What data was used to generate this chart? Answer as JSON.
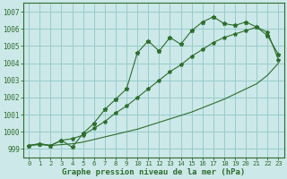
{
  "xlabel": "Graphe pression niveau de la mer (hPa)",
  "bg_color": "#cce8e8",
  "grid_color": "#99cccc",
  "line_color": "#2d6e2d",
  "x_ticks": [
    0,
    1,
    2,
    3,
    4,
    5,
    6,
    7,
    8,
    9,
    10,
    11,
    12,
    13,
    14,
    15,
    16,
    17,
    18,
    19,
    20,
    21,
    22,
    23
  ],
  "ylim": [
    998.5,
    1007.5
  ],
  "xlim": [
    -0.5,
    23.5
  ],
  "yticks": [
    999,
    1000,
    1001,
    1002,
    1003,
    1004,
    1005,
    1006,
    1007
  ],
  "main_series": [
    999.2,
    999.3,
    999.2,
    999.5,
    999.1,
    999.9,
    1000.5,
    1001.3,
    1001.9,
    1002.5,
    1004.6,
    1005.3,
    1004.7,
    1005.5,
    1005.1,
    1005.9,
    1006.4,
    1006.7,
    1006.3,
    1006.2,
    1006.4,
    1006.1,
    1005.6,
    1004.5
  ],
  "upper_diag": [
    999.2,
    999.3,
    999.2,
    999.5,
    999.6,
    999.8,
    1000.2,
    1000.6,
    1001.1,
    1001.5,
    1002.0,
    1002.5,
    1003.0,
    1003.5,
    1003.9,
    1004.4,
    1004.8,
    1005.2,
    1005.5,
    1005.7,
    1005.9,
    1006.1,
    1005.8,
    1004.2
  ],
  "lower_diag": [
    999.2,
    999.25,
    999.2,
    999.25,
    999.3,
    999.4,
    999.55,
    999.7,
    999.85,
    1000.0,
    1000.15,
    1000.35,
    1000.55,
    1000.75,
    1000.95,
    1001.15,
    1001.4,
    1001.65,
    1001.9,
    1002.2,
    1002.5,
    1002.8,
    1003.3,
    1004.0
  ]
}
